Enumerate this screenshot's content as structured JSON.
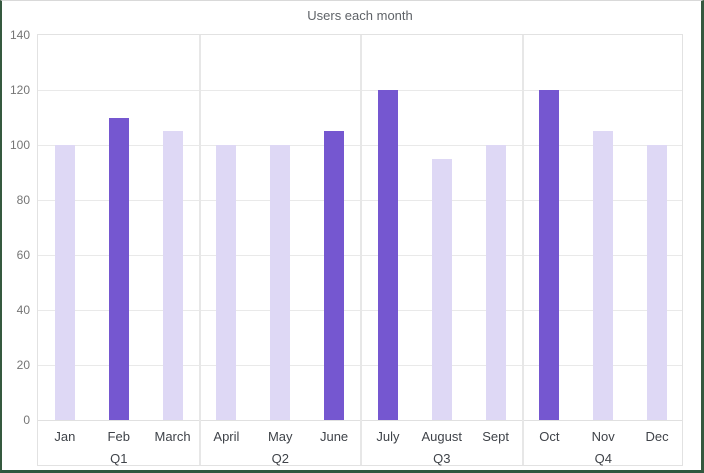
{
  "window": {
    "border_color": "#2f563e",
    "top_edge_color": "#d9d9d9",
    "background": "#ffffff"
  },
  "chart_data": {
    "type": "bar",
    "title": "Users each month",
    "categories": [
      "Jan",
      "Feb",
      "March",
      "April",
      "May",
      "June",
      "July",
      "August",
      "Sept",
      "Oct",
      "Nov",
      "Dec"
    ],
    "values": [
      100,
      110,
      105,
      100,
      100,
      105,
      120,
      95,
      100,
      120,
      105,
      100
    ],
    "emphasis": [
      false,
      true,
      false,
      false,
      false,
      true,
      true,
      false,
      false,
      true,
      false,
      false
    ],
    "groups": [
      {
        "label": "Q1",
        "months": [
          "Jan",
          "Feb",
          "March"
        ]
      },
      {
        "label": "Q2",
        "months": [
          "April",
          "May",
          "June"
        ]
      },
      {
        "label": "Q3",
        "months": [
          "July",
          "August",
          "Sept"
        ]
      },
      {
        "label": "Q4",
        "months": [
          "Oct",
          "Nov",
          "Dec"
        ]
      }
    ],
    "yticks": [
      "0",
      "20",
      "40",
      "60",
      "80",
      "100",
      "120",
      "140"
    ],
    "ylim": [
      0,
      140
    ],
    "ytick_step": 20,
    "xlabel": "",
    "ylabel": "",
    "grid": true,
    "legend": "none",
    "colors": {
      "bar_default": "#ded8f5",
      "bar_emphasis": "#7557d0",
      "gridline": "#e9e9e9",
      "frame": "#e2e2e2",
      "title_text": "#5f6368",
      "ytick_text": "#757575",
      "xtick_text": "#3f4349"
    }
  }
}
